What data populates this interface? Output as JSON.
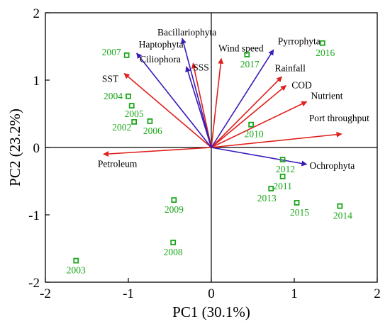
{
  "chart_data": {
    "type": "scatter",
    "subtype": "pca-biplot",
    "xlabel": "PC1 (30.1%)",
    "ylabel": "PC2 (23.2%)",
    "xlim": [
      -2,
      2
    ],
    "ylim": [
      -2,
      2
    ],
    "xticks": [
      "-2",
      "-1",
      "0",
      "1",
      "2"
    ],
    "yticks": [
      "-2",
      "-1",
      "0",
      "1",
      "2"
    ],
    "grid": false,
    "reference_lines": [
      0,
      0
    ],
    "colors": {
      "environment_vector": "#e0201c",
      "phytoplankton_vector": "#3a1ab8",
      "sample": "#1aa61a"
    },
    "environment_vectors": [
      {
        "name": "SST",
        "x": -1.05,
        "y": 1.1
      },
      {
        "name": "SSS",
        "x": -0.22,
        "y": 1.25
      },
      {
        "name": "Wind speed",
        "x": 0.12,
        "y": 1.32
      },
      {
        "name": "Rainfall",
        "x": 0.85,
        "y": 1.05
      },
      {
        "name": "COD",
        "x": 0.9,
        "y": 0.92
      },
      {
        "name": "Nutrient",
        "x": 1.15,
        "y": 0.68
      },
      {
        "name": "Port throughput",
        "x": 1.57,
        "y": 0.2
      },
      {
        "name": "Petroleum",
        "x": -1.3,
        "y": -0.1
      }
    ],
    "phytoplankton_vectors": [
      {
        "name": "Bacillariophyta",
        "x": -0.35,
        "y": 1.62
      },
      {
        "name": "Haptophyta",
        "x": -0.9,
        "y": 1.4
      },
      {
        "name": "Ciliophora",
        "x": -0.3,
        "y": 1.2
      },
      {
        "name": "Pyrrophyta",
        "x": 0.75,
        "y": 1.45
      },
      {
        "name": "Ochrophyta",
        "x": 1.15,
        "y": -0.25
      }
    ],
    "samples": [
      {
        "label": "2003",
        "x": -1.63,
        "y": -1.68
      },
      {
        "label": "2004",
        "x": -1.0,
        "y": 0.76
      },
      {
        "label": "2005",
        "x": -0.96,
        "y": 0.62
      },
      {
        "label": "2006",
        "x": -0.74,
        "y": 0.39
      },
      {
        "label": "2007",
        "x": -1.02,
        "y": 1.37
      },
      {
        "label": "2002",
        "x": -0.93,
        "y": 0.38
      },
      {
        "label": "2008",
        "x": -0.46,
        "y": -1.41
      },
      {
        "label": "2009",
        "x": -0.45,
        "y": -0.78
      },
      {
        "label": "2010",
        "x": 0.48,
        "y": 0.34
      },
      {
        "label": "2011",
        "x": 0.86,
        "y": -0.43
      },
      {
        "label": "2012",
        "x": 0.86,
        "y": -0.18
      },
      {
        "label": "2013",
        "x": 0.72,
        "y": -0.61
      },
      {
        "label": "2014",
        "x": 1.55,
        "y": -0.87
      },
      {
        "label": "2015",
        "x": 1.03,
        "y": -0.82
      },
      {
        "label": "2016",
        "x": 1.34,
        "y": 1.55
      },
      {
        "label": "2017",
        "x": 0.43,
        "y": 1.38
      }
    ]
  }
}
